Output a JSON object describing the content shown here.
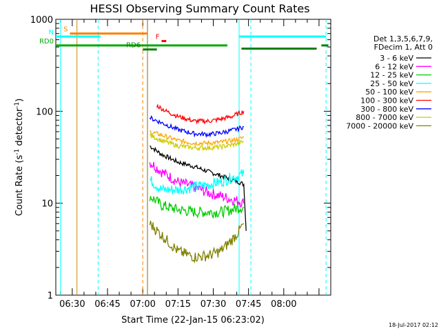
{
  "chart_data": {
    "type": "line",
    "title": "HESSI Observing Summary Count Rates",
    "xlabel": "Start Time (22-Jan-15 06:23:02)",
    "ylabel_main": "Count Rate (s",
    "ylabel_sup1": "-1",
    "ylabel_mid": " detector",
    "ylabel_sup2": "-1",
    "ylabel_end": ")",
    "y_scale": "log",
    "ylim": [
      1,
      1000
    ],
    "xlim_min": [
      23,
      140
    ],
    "x_ticks": [
      {
        "min": 30,
        "label": "06:30"
      },
      {
        "min": 45,
        "label": "06:45"
      },
      {
        "min": 60,
        "label": "07:00"
      },
      {
        "min": 75,
        "label": "07:15"
      },
      {
        "min": 90,
        "label": "07:30"
      },
      {
        "min": 105,
        "label": "07:45"
      },
      {
        "min": 120,
        "label": "08:00"
      }
    ],
    "y_ticks": [
      {
        "value": 1,
        "label": "1"
      },
      {
        "value": 10,
        "label": "10"
      },
      {
        "value": 100,
        "label": "100"
      },
      {
        "value": 1000,
        "label": "1000"
      }
    ],
    "legend_header": [
      "Det 1,3,5,6,7,9,",
      "FDecim 1, Att 0"
    ],
    "legend_placement": "right",
    "series": [
      {
        "name": "3 - 6 keV",
        "color": "#000000",
        "points": [
          [
            63,
            42
          ],
          [
            68,
            34
          ],
          [
            75,
            28
          ],
          [
            82,
            25
          ],
          [
            88,
            22
          ],
          [
            93,
            20
          ],
          [
            98,
            18
          ],
          [
            101,
            17
          ],
          [
            103,
            16
          ],
          [
            104,
            5
          ]
        ]
      },
      {
        "name": "6 - 12 keV",
        "color": "#ff00ff",
        "points": [
          [
            63,
            28
          ],
          [
            68,
            22
          ],
          [
            75,
            17
          ],
          [
            82,
            15
          ],
          [
            88,
            13
          ],
          [
            93,
            12
          ],
          [
            98,
            11
          ],
          [
            101,
            10.5
          ],
          [
            103,
            10
          ]
        ]
      },
      {
        "name": "12 - 25 keV",
        "color": "#00cc00",
        "points": [
          [
            63,
            12
          ],
          [
            68,
            9.5
          ],
          [
            75,
            8.5
          ],
          [
            82,
            8
          ],
          [
            88,
            8
          ],
          [
            93,
            8
          ],
          [
            98,
            8.5
          ],
          [
            101,
            9
          ],
          [
            103,
            9
          ]
        ]
      },
      {
        "name": "25 - 50 keV",
        "color": "#00ffff",
        "points": [
          [
            63,
            18
          ],
          [
            68,
            14
          ],
          [
            75,
            14
          ],
          [
            82,
            15
          ],
          [
            88,
            16
          ],
          [
            93,
            17
          ],
          [
            98,
            19
          ],
          [
            101,
            20
          ],
          [
            103,
            21
          ]
        ]
      },
      {
        "name": "50 - 100 keV",
        "color": "#ffa500",
        "points": [
          [
            63,
            60
          ],
          [
            68,
            55
          ],
          [
            75,
            48
          ],
          [
            82,
            45
          ],
          [
            88,
            45
          ],
          [
            93,
            46
          ],
          [
            98,
            48
          ],
          [
            101,
            50
          ],
          [
            103,
            52
          ]
        ]
      },
      {
        "name": "100 - 300 keV",
        "color": "#ff0000",
        "points": [
          [
            66,
            115
          ],
          [
            70,
            100
          ],
          [
            75,
            88
          ],
          [
            82,
            78
          ],
          [
            88,
            78
          ],
          [
            93,
            82
          ],
          [
            98,
            88
          ],
          [
            101,
            95
          ],
          [
            103,
            100
          ]
        ]
      },
      {
        "name": "300 - 800 keV",
        "color": "#0000ff",
        "points": [
          [
            63,
            85
          ],
          [
            68,
            75
          ],
          [
            75,
            63
          ],
          [
            82,
            57
          ],
          [
            88,
            56
          ],
          [
            93,
            58
          ],
          [
            98,
            62
          ],
          [
            101,
            65
          ],
          [
            103,
            68
          ]
        ]
      },
      {
        "name": "800 - 7000 keV",
        "color": "#cccc00",
        "points": [
          [
            63,
            55
          ],
          [
            68,
            48
          ],
          [
            75,
            42
          ],
          [
            82,
            40
          ],
          [
            88,
            40
          ],
          [
            93,
            41
          ],
          [
            98,
            43
          ],
          [
            101,
            45
          ],
          [
            103,
            47
          ]
        ]
      },
      {
        "name": "7000 - 20000 keV",
        "color": "#808000",
        "points": [
          [
            63,
            6
          ],
          [
            68,
            4.5
          ],
          [
            75,
            3
          ],
          [
            82,
            2.6
          ],
          [
            88,
            2.7
          ],
          [
            93,
            3
          ],
          [
            98,
            4
          ],
          [
            101,
            5
          ],
          [
            103,
            6
          ]
        ]
      }
    ],
    "flag_bars": [
      {
        "label": "S",
        "color": "#ff8000",
        "y": 700,
        "x0": 29,
        "x1": 62
      },
      {
        "label": "N",
        "color": "#00ffff",
        "y": 650,
        "x0": 23,
        "x1": 42
      },
      {
        "label": "",
        "color": "#00ffff",
        "y": 650,
        "x0": 101,
        "x1": 138
      },
      {
        "label": "RD0",
        "color": "#00aa00",
        "y": 520,
        "x0": 23,
        "x1": 96
      },
      {
        "label": "RD6",
        "color": "#008000",
        "y": 470,
        "x0": 60,
        "x1": 66
      },
      {
        "label": "",
        "color": "#008000",
        "y": 480,
        "x0": 102,
        "x1": 134
      },
      {
        "label": "",
        "color": "#008000",
        "y": 520,
        "x0": 136,
        "x1": 139
      },
      {
        "label": "F",
        "color": "#ff0000",
        "y": 580,
        "x0": 68,
        "x1": 70
      }
    ],
    "vlines": [
      {
        "x": 25,
        "color": "#00ffff",
        "style": "solid"
      },
      {
        "x": 32,
        "color": "#cc8800",
        "style": "solid"
      },
      {
        "x": 41,
        "color": "#00ffff",
        "style": "dashed"
      },
      {
        "x": 60,
        "color": "#ff8000",
        "style": "dashed"
      },
      {
        "x": 62,
        "color": "#996600",
        "style": "solid"
      },
      {
        "x": 101,
        "color": "#00ffff",
        "style": "solid"
      },
      {
        "x": 106,
        "color": "#00ffff",
        "style": "dashed"
      },
      {
        "x": 138,
        "color": "#00ffff",
        "style": "dashed"
      }
    ],
    "footer_text": "18-Jul-2017 02:12",
    "grid": false
  }
}
